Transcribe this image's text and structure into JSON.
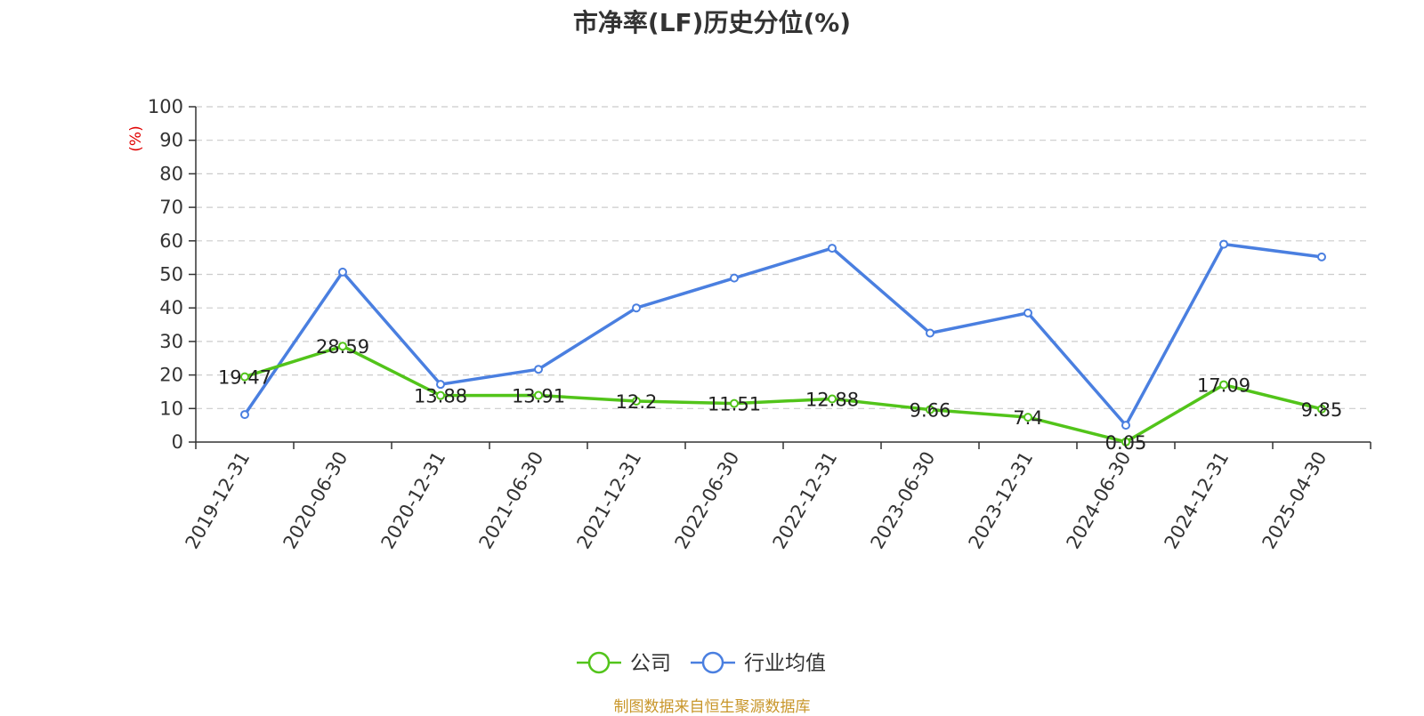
{
  "title": "市净率(LF)历史分位(%)",
  "source": "制图数据来自恒生聚源数据库",
  "chart_data": {
    "type": "line",
    "title": "市净率(LF)历史分位(%)",
    "ylabel": "(%)",
    "ylabel_color": "#e00000",
    "ylim": [
      0,
      100
    ],
    "yticks": [
      0,
      10,
      20,
      30,
      40,
      50,
      60,
      70,
      80,
      90,
      100
    ],
    "grid": "horizontal-dashed",
    "legend_position": "bottom-center",
    "categories": [
      "2019-12-31",
      "2020-06-30",
      "2020-12-31",
      "2021-06-30",
      "2021-12-31",
      "2022-06-30",
      "2022-12-31",
      "2023-06-30",
      "2023-12-31",
      "2024-06-30",
      "2024-12-31",
      "2025-04-30"
    ],
    "series": [
      {
        "name": "公司",
        "color": "#52c41a",
        "values": [
          19.47,
          28.59,
          13.88,
          13.91,
          12.2,
          11.51,
          12.88,
          9.66,
          7.4,
          0.05,
          17.09,
          9.85
        ],
        "labels": [
          "19.47",
          "28.59",
          "13.88",
          "13.91",
          "12.2",
          "11.51",
          "12.88",
          "9.66",
          "7.4",
          "0.05",
          "17.09",
          "9.85"
        ],
        "show_labels": true
      },
      {
        "name": "行业均值",
        "color": "#4a7fe0",
        "values": [
          8.2,
          50.7,
          17.2,
          21.7,
          40.0,
          48.9,
          57.8,
          32.5,
          38.5,
          5.0,
          59.0,
          55.2
        ],
        "show_labels": false
      }
    ]
  }
}
